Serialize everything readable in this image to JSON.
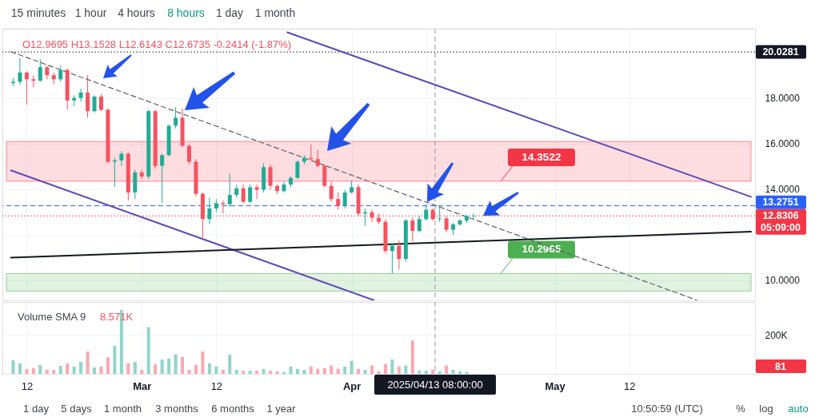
{
  "chart_data": [
    {
      "type": "candlestick",
      "subtitle": "O12.9695 H13.1528 L12.6143 C12.6735 -0.2414 (-1.87%)",
      "x": [
        "2025-02-10",
        "2025-02-11",
        "2025-02-12",
        "2025-02-13",
        "2025-02-14",
        "2025-02-15",
        "2025-02-16",
        "2025-02-17",
        "2025-02-18",
        "2025-02-19",
        "2025-02-20",
        "2025-02-21",
        "2025-02-22",
        "2025-02-23",
        "2025-02-24",
        "2025-02-25",
        "2025-02-26",
        "2025-02-27",
        "2025-02-28",
        "2025-03-01",
        "2025-03-02",
        "2025-03-03",
        "2025-03-04",
        "2025-03-05",
        "2025-03-06",
        "2025-03-07",
        "2025-03-08",
        "2025-03-09",
        "2025-03-10",
        "2025-03-11",
        "2025-03-12",
        "2025-03-13",
        "2025-03-14",
        "2025-03-15",
        "2025-03-16",
        "2025-03-17",
        "2025-03-18",
        "2025-03-19",
        "2025-03-20",
        "2025-03-21",
        "2025-03-22",
        "2025-03-23",
        "2025-03-24",
        "2025-03-25",
        "2025-03-26",
        "2025-03-27",
        "2025-03-28",
        "2025-03-29",
        "2025-03-30",
        "2025-03-31",
        "2025-04-01",
        "2025-04-02",
        "2025-04-03",
        "2025-04-04",
        "2025-04-05",
        "2025-04-06",
        "2025-04-07",
        "2025-04-08",
        "2025-04-09",
        "2025-04-10",
        "2025-04-11",
        "2025-04-12",
        "2025-04-13",
        "2025-04-14",
        "2025-04-15",
        "2025-04-16",
        "2025-04-17",
        "2025-04-18",
        "2025-04-19"
      ],
      "ohlc": [
        [
          18.66,
          18.89,
          18.54,
          18.72
        ],
        [
          18.72,
          19.77,
          18.6,
          19.13
        ],
        [
          19.13,
          19.18,
          17.72,
          18.83
        ],
        [
          18.83,
          19.01,
          18.48,
          18.77
        ],
        [
          18.77,
          19.71,
          18.72,
          19.36
        ],
        [
          19.36,
          19.42,
          18.83,
          19.01
        ],
        [
          19.01,
          19.13,
          18.6,
          18.83
        ],
        [
          18.83,
          19.42,
          18.72,
          19.24
        ],
        [
          19.24,
          19.3,
          17.49,
          17.9
        ],
        [
          17.9,
          18.13,
          17.66,
          18.01
        ],
        [
          18.01,
          18.42,
          17.84,
          18.25
        ],
        [
          18.25,
          19.01,
          17.14,
          17.43
        ],
        [
          17.43,
          18.13,
          17.37,
          18.07
        ],
        [
          18.07,
          18.19,
          17.43,
          17.49
        ],
        [
          17.49,
          17.55,
          15.15,
          15.21
        ],
        [
          15.21,
          15.38,
          14.1,
          15.27
        ],
        [
          15.27,
          15.68,
          15.03,
          15.56
        ],
        [
          15.56,
          15.62,
          13.51,
          13.86
        ],
        [
          13.86,
          14.86,
          13.57,
          14.74
        ],
        [
          14.74,
          14.86,
          14.45,
          14.56
        ],
        [
          14.56,
          17.49,
          14.45,
          17.43
        ],
        [
          17.43,
          17.49,
          14.91,
          15.03
        ],
        [
          15.03,
          15.56,
          13.39,
          15.5
        ],
        [
          15.5,
          16.85,
          15.44,
          16.79
        ],
        [
          16.79,
          17.6,
          16.67,
          17.14
        ],
        [
          17.14,
          17.55,
          15.85,
          15.91
        ],
        [
          15.91,
          15.97,
          15.09,
          15.21
        ],
        [
          15.21,
          15.32,
          13.69,
          13.8
        ],
        [
          13.8,
          13.86,
          11.87,
          12.69
        ],
        [
          12.69,
          13.63,
          12.46,
          13.16
        ],
        [
          13.16,
          13.57,
          12.99,
          13.39
        ],
        [
          13.39,
          13.51,
          12.93,
          13.34
        ],
        [
          13.34,
          14.68,
          13.22,
          13.75
        ],
        [
          13.75,
          14.21,
          13.63,
          14.04
        ],
        [
          14.04,
          14.21,
          13.39,
          13.45
        ],
        [
          13.45,
          14.21,
          13.39,
          14.09
        ],
        [
          14.09,
          14.21,
          13.57,
          13.98
        ],
        [
          13.98,
          15.15,
          13.86,
          14.97
        ],
        [
          14.97,
          15.09,
          13.98,
          14.15
        ],
        [
          14.15,
          14.21,
          13.8,
          13.92
        ],
        [
          13.92,
          14.33,
          13.86,
          14.21
        ],
        [
          14.21,
          14.56,
          14.09,
          14.5
        ],
        [
          14.5,
          15.27,
          14.45,
          15.21
        ],
        [
          15.21,
          15.5,
          15.09,
          15.38
        ],
        [
          15.38,
          15.97,
          15.27,
          15.32
        ],
        [
          15.32,
          15.73,
          14.97,
          15.03
        ],
        [
          15.03,
          15.09,
          14.09,
          14.15
        ],
        [
          14.15,
          14.33,
          13.45,
          13.57
        ],
        [
          13.57,
          13.86,
          13.1,
          13.28
        ],
        [
          13.28,
          13.98,
          13.16,
          13.86
        ],
        [
          13.86,
          14.39,
          13.8,
          14.09
        ],
        [
          14.09,
          14.21,
          12.81,
          12.93
        ],
        [
          12.93,
          13.16,
          12.4,
          12.99
        ],
        [
          12.99,
          13.1,
          12.57,
          12.75
        ],
        [
          12.75,
          12.93,
          12.46,
          12.57
        ],
        [
          12.57,
          12.69,
          11.17,
          11.29
        ],
        [
          11.29,
          11.64,
          10.3,
          11.52
        ],
        [
          11.52,
          11.76,
          10.47,
          10.94
        ],
        [
          10.94,
          12.69,
          10.82,
          12.63
        ],
        [
          12.63,
          12.75,
          11.7,
          12.17
        ],
        [
          12.17,
          12.81,
          12.11,
          12.69
        ],
        [
          12.69,
          13.34,
          12.63,
          13.1
        ],
        [
          13.1,
          13.15,
          12.61,
          12.69
        ],
        [
          12.69,
          13.28,
          12.57,
          12.72
        ],
        [
          12.72,
          12.81,
          12.11,
          12.22
        ],
        [
          12.22,
          12.52,
          11.99,
          12.46
        ],
        [
          12.46,
          12.69,
          12.4,
          12.63
        ],
        [
          12.63,
          12.87,
          12.52,
          12.81
        ],
        [
          12.81,
          12.93,
          12.69,
          12.8306
        ]
      ],
      "colors": [
        "#22ab94",
        "#22ab94",
        "#f7525f",
        "#f7525f",
        "#22ab94",
        "#f7525f",
        "#f7525f",
        "#22ab94",
        "#f7525f",
        "#22ab94",
        "#22ab94",
        "#f7525f",
        "#22ab94",
        "#f7525f",
        "#f7525f",
        "#22ab94",
        "#22ab94",
        "#f7525f",
        "#22ab94",
        "#f7525f",
        "#22ab94",
        "#f7525f",
        "#22ab94",
        "#22ab94",
        "#22ab94",
        "#f7525f",
        "#f7525f",
        "#f7525f",
        "#f7525f",
        "#22ab94",
        "#22ab94",
        "#f7525f",
        "#22ab94",
        "#22ab94",
        "#f7525f",
        "#22ab94",
        "#f7525f",
        "#22ab94",
        "#f7525f",
        "#f7525f",
        "#22ab94",
        "#22ab94",
        "#22ab94",
        "#22ab94",
        "#f7525f",
        "#f7525f",
        "#f7525f",
        "#f7525f",
        "#f7525f",
        "#22ab94",
        "#22ab94",
        "#f7525f",
        "#22ab94",
        "#f7525f",
        "#f7525f",
        "#f7525f",
        "#22ab94",
        "#f7525f",
        "#22ab94",
        "#f7525f",
        "#22ab94",
        "#22ab94",
        "#f7525f",
        "#22ab94",
        "#f7525f",
        "#22ab94",
        "#22ab94",
        "#22ab94",
        "#22ab94"
      ],
      "series": [
        {
          "type": "line",
          "x": [
            "2025-03-22T12:00",
            "2025-05-30T00:00"
          ],
          "values": [
            20.89,
            13.67
          ],
          "color": "#6049b5"
        },
        {
          "type": "line",
          "x": [
            "2025-02-09T16:00",
            "2025-04-04T06:00"
          ],
          "values": [
            14.83,
            9.13
          ],
          "color": "#6049b5"
        },
        {
          "type": "line",
          "x": [
            "2025-02-09T16:00",
            "2025-05-22T00:00"
          ],
          "values": [
            20.04,
            9.13
          ],
          "color": "#5d606b",
          "line_style": "dashed"
        },
        {
          "type": "line",
          "x": [
            "2025-02-09T16:00",
            "2025-05-30T00:00"
          ],
          "values": [
            11.0,
            12.14
          ],
          "color": "#131722"
        }
      ],
      "xlim": [
        "2025-02-09",
        "2025-05-30"
      ],
      "ylim": [
        9.12,
        21.05
      ],
      "xticks": [
        {
          "value": "2025-02-12",
          "label": null
        },
        {
          "value": "2025-03-01",
          "label": null
        },
        {
          "value": "2025-03-12",
          "label": null
        },
        {
          "value": "2025-04-01",
          "label": null
        },
        {
          "value": "2025-04-12",
          "label": null
        },
        {
          "value": "2025-05-01",
          "label": null
        },
        {
          "value": "2025-05-12",
          "label": null
        }
      ],
      "yticks": [
        {
          "value": 10,
          "label": "10.0000"
        },
        {
          "value": 12,
          "label": null
        },
        {
          "value": 14,
          "label": "14.0000"
        },
        {
          "value": 16,
          "label": "16.0000"
        },
        {
          "value": 18,
          "label": "18.0000"
        }
      ],
      "tick_labels": "y",
      "grid": true,
      "ref_lines": [
        {
          "axis": "y",
          "value": 20.0281,
          "label": "20.0281",
          "color": "#131722",
          "line_style": "dotted"
        },
        {
          "axis": "y",
          "value": 13.2751,
          "label": "13.2751",
          "color": "#2962ff",
          "line_style": "dashed"
        },
        {
          "axis": "y",
          "value": 12.8306,
          "label": "12.8306",
          "color": "#f23645",
          "line_style": "dotted"
        },
        {
          "axis": "x",
          "value": "2025-04-13T08:00",
          "color": "#9598a1",
          "line_style": "dashed"
        }
      ],
      "bands": [
        {
          "axis": "y",
          "from": 14.3522,
          "to": 16.1,
          "label": "14.3522",
          "color": "#f23645"
        },
        {
          "axis": "y",
          "from": 10.2965,
          "to": 9.53,
          "label": "10.2965",
          "color": "#4caf50"
        }
      ],
      "annotations": [
        "15 minutes",
        "1 hour",
        "4 hours",
        "8 hours",
        "1 day",
        "1 month",
        "05:09:00"
      ]
    },
    {
      "type": "bar",
      "title": "Volume SMA 9",
      "subtitle": "8.571K",
      "x": [
        "2025-02-10",
        "2025-02-11",
        "2025-02-12",
        "2025-02-13",
        "2025-02-14",
        "2025-02-15",
        "2025-02-16",
        "2025-02-17",
        "2025-02-18",
        "2025-02-19",
        "2025-02-20",
        "2025-02-21",
        "2025-02-22",
        "2025-02-23",
        "2025-02-24",
        "2025-02-25",
        "2025-02-26",
        "2025-02-27",
        "2025-02-28",
        "2025-03-01",
        "2025-03-02",
        "2025-03-03",
        "2025-03-04",
        "2025-03-05",
        "2025-03-06",
        "2025-03-07",
        "2025-03-08",
        "2025-03-09",
        "2025-03-10",
        "2025-03-11",
        "2025-03-12",
        "2025-03-13",
        "2025-03-14",
        "2025-03-15",
        "2025-03-16",
        "2025-03-17",
        "2025-03-18",
        "2025-03-19",
        "2025-03-20",
        "2025-03-21",
        "2025-03-22",
        "2025-03-23",
        "2025-03-24",
        "2025-03-25",
        "2025-03-26",
        "2025-03-27",
        "2025-03-28",
        "2025-03-29",
        "2025-03-30",
        "2025-03-31",
        "2025-04-01",
        "2025-04-02",
        "2025-04-03",
        "2025-04-04",
        "2025-04-05",
        "2025-04-06",
        "2025-04-07",
        "2025-04-08",
        "2025-04-09",
        "2025-04-10",
        "2025-04-11",
        "2025-04-12",
        "2025-04-13",
        "2025-04-14",
        "2025-04-15",
        "2025-04-16",
        "2025-04-17",
        "2025-04-18",
        "2025-04-19"
      ],
      "values": [
        70000,
        54000,
        25000,
        30000,
        46000,
        21000,
        20000,
        41000,
        54000,
        38000,
        62000,
        115000,
        33000,
        38000,
        85000,
        144000,
        330000,
        54000,
        62000,
        21000,
        240000,
        49000,
        74000,
        79000,
        100000,
        87000,
        21000,
        46000,
        115000,
        54000,
        38000,
        21000,
        98000,
        21000,
        16000,
        16000,
        16000,
        26000,
        16000,
        13000,
        10000,
        38000,
        26000,
        21000,
        38000,
        26000,
        30000,
        43000,
        26000,
        38000,
        67000,
        26000,
        21000,
        43000,
        13000,
        51000,
        74000,
        38000,
        43000,
        172000,
        16000,
        16000,
        21000,
        13000,
        43000,
        21000,
        13000,
        10000,
        81
      ],
      "colors": [
        "#91d5c9",
        "#91d5c9",
        "#fba8af",
        "#fba8af",
        "#91d5c9",
        "#fba8af",
        "#fba8af",
        "#91d5c9",
        "#fba8af",
        "#91d5c9",
        "#91d5c9",
        "#fba8af",
        "#91d5c9",
        "#fba8af",
        "#fba8af",
        "#91d5c9",
        "#91d5c9",
        "#fba8af",
        "#91d5c9",
        "#fba8af",
        "#91d5c9",
        "#fba8af",
        "#91d5c9",
        "#91d5c9",
        "#91d5c9",
        "#fba8af",
        "#fba8af",
        "#fba8af",
        "#fba8af",
        "#91d5c9",
        "#91d5c9",
        "#fba8af",
        "#91d5c9",
        "#91d5c9",
        "#fba8af",
        "#91d5c9",
        "#fba8af",
        "#91d5c9",
        "#fba8af",
        "#fba8af",
        "#91d5c9",
        "#91d5c9",
        "#91d5c9",
        "#91d5c9",
        "#fba8af",
        "#fba8af",
        "#fba8af",
        "#fba8af",
        "#fba8af",
        "#91d5c9",
        "#91d5c9",
        "#fba8af",
        "#91d5c9",
        "#fba8af",
        "#fba8af",
        "#fba8af",
        "#91d5c9",
        "#fba8af",
        "#91d5c9",
        "#fba8af",
        "#91d5c9",
        "#91d5c9",
        "#fba8af",
        "#91d5c9",
        "#fba8af",
        "#91d5c9",
        "#91d5c9",
        "#91d5c9",
        "#91d5c9"
      ],
      "xlim": [
        "2025-02-09",
        "2025-05-30"
      ],
      "ylim": [
        0,
        370000
      ],
      "xticks": [
        {
          "value": "2025-02-12",
          "label": "12"
        },
        {
          "value": "2025-03-01",
          "label": "Mar"
        },
        {
          "value": "2025-03-12",
          "label": "12"
        },
        {
          "value": "2025-04-01",
          "label": "Apr"
        },
        {
          "value": "2025-04-12",
          "label": null
        },
        {
          "value": "2025-05-01",
          "label": "May"
        },
        {
          "value": "2025-05-12",
          "label": "12"
        }
      ],
      "yticks": [
        {
          "value": 200000,
          "label": "200K"
        }
      ],
      "grid": true,
      "ref_lines": [
        {
          "axis": "x",
          "value": "2025-04-13T08:00",
          "label": "2025/04/13 08:00:00",
          "color": "#9598a1",
          "line_style": "dashed"
        }
      ],
      "annotations": [
        "81",
        "1 day",
        "5 days",
        "1 month",
        "3 months",
        "6 months",
        "1 year",
        "10:50:59 (UTC)",
        "%",
        "log",
        "auto"
      ]
    }
  ]
}
